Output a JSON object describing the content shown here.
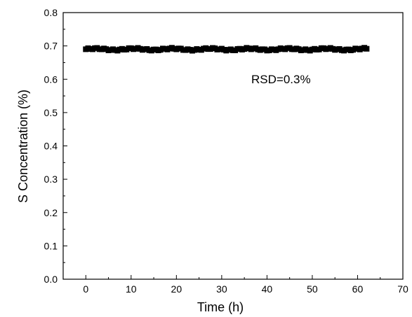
{
  "chart_data": {
    "type": "scatter",
    "xlabel": "Time (h)",
    "ylabel": "S Concentration (%)",
    "xlim": [
      -5,
      70
    ],
    "ylim": [
      0.0,
      0.8
    ],
    "x_ticks": [
      "0",
      "10",
      "20",
      "30",
      "40",
      "50",
      "60",
      "70"
    ],
    "y_ticks": [
      "0.0",
      "0.1",
      "0.2",
      "0.3",
      "0.4",
      "0.5",
      "0.6",
      "0.7",
      "0.8"
    ],
    "annotation": "RSD=0.3%",
    "marker": "square",
    "marker_color": "#000000",
    "grid": false,
    "series": [
      {
        "x_start": 0,
        "x_end": 62,
        "x_step": 0.5,
        "y_mean": 0.69,
        "y_range": [
          0.686,
          0.695
        ]
      }
    ]
  }
}
